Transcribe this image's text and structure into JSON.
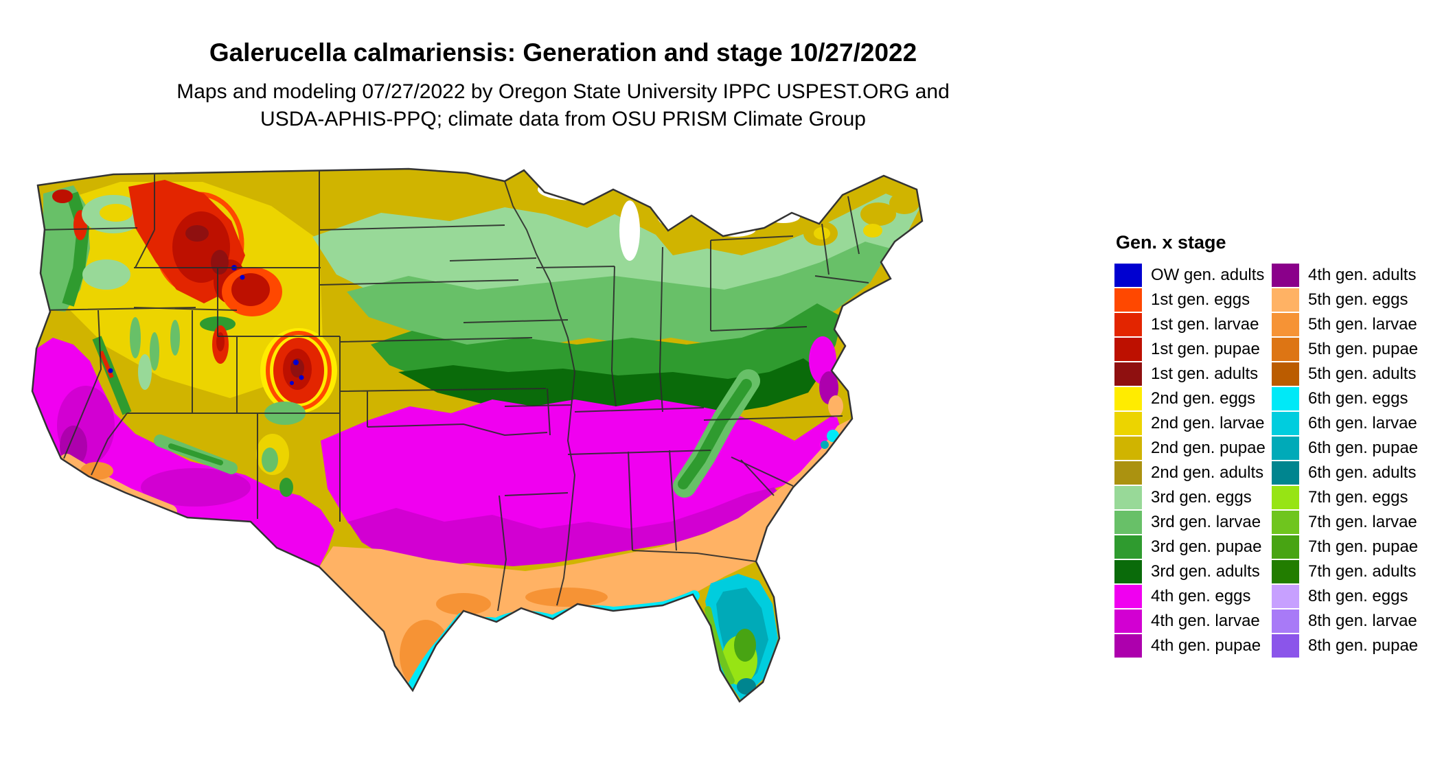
{
  "header": {
    "title": "Galerucella calmariensis: Generation and stage 10/27/2022",
    "subtitle_line1": "Maps and modeling 07/27/2022 by Oregon State University IPPC USPEST.ORG and",
    "subtitle_line2": "USDA-APHIS-PPQ; climate data from OSU PRISM Climate Group"
  },
  "legend": {
    "title": "Gen. x stage",
    "columns": [
      {
        "entries": [
          {
            "label": "OW gen. adults",
            "color": "#0000d0",
            "key": "ow_adults"
          },
          {
            "label": "1st gen. eggs",
            "color": "#ff4800",
            "key": "g1_eggs"
          },
          {
            "label": "1st gen. larvae",
            "color": "#e32500",
            "key": "g1_larvae"
          },
          {
            "label": "1st gen. pupae",
            "color": "#bd1000",
            "key": "g1_pupae"
          },
          {
            "label": "1st gen. adults",
            "color": "#8f1010",
            "key": "g1_adults"
          },
          {
            "label": "2nd gen. eggs",
            "color": "#ffec00",
            "key": "g2_eggs"
          },
          {
            "label": "2nd gen. larvae",
            "color": "#ecd400",
            "key": "g2_larvae"
          },
          {
            "label": "2nd gen. pupae",
            "color": "#d0b400",
            "key": "g2_pupae"
          },
          {
            "label": "2nd gen. adults",
            "color": "#ab9210",
            "key": "g2_adults"
          },
          {
            "label": "3rd gen. eggs",
            "color": "#98d998",
            "key": "g3_eggs"
          },
          {
            "label": "3rd gen. larvae",
            "color": "#68c068",
            "key": "g3_larvae"
          },
          {
            "label": "3rd gen. pupae",
            "color": "#2f9b2f",
            "key": "g3_pupae"
          },
          {
            "label": "3rd gen. adults",
            "color": "#0a6b0a",
            "key": "g3_adults"
          },
          {
            "label": "4th gen. eggs",
            "color": "#f000f0",
            "key": "g4_eggs"
          },
          {
            "label": "4th gen. larvae",
            "color": "#d200d2",
            "key": "g4_larvae"
          },
          {
            "label": "4th gen. pupae",
            "color": "#ad00ad",
            "key": "g4_pupae"
          }
        ]
      },
      {
        "entries": [
          {
            "label": "4th gen. adults",
            "color": "#8a008a",
            "key": "g4_adults"
          },
          {
            "label": "5th gen. eggs",
            "color": "#ffb264",
            "key": "g5_eggs"
          },
          {
            "label": "5th gen. larvae",
            "color": "#f69335",
            "key": "g5_larvae"
          },
          {
            "label": "5th gen. pupae",
            "color": "#dd7514",
            "key": "g5_pupae"
          },
          {
            "label": "5th gen. adults",
            "color": "#bb5c00",
            "key": "g5_adults"
          },
          {
            "label": "6th gen. eggs",
            "color": "#00e9f7",
            "key": "g6_eggs"
          },
          {
            "label": "6th gen. larvae",
            "color": "#00cdde",
            "key": "g6_larvae"
          },
          {
            "label": "6th gen. pupae",
            "color": "#00aab8",
            "key": "g6_pupae"
          },
          {
            "label": "6th gen. adults",
            "color": "#00858f",
            "key": "g6_adults"
          },
          {
            "label": "7th gen. eggs",
            "color": "#97e414",
            "key": "g7_eggs"
          },
          {
            "label": "7th gen. larvae",
            "color": "#6fc51e",
            "key": "g7_larvae"
          },
          {
            "label": "7th gen. pupae",
            "color": "#48a413",
            "key": "g7_pupae"
          },
          {
            "label": "7th gen. adults",
            "color": "#227d00",
            "key": "g7_adults"
          },
          {
            "label": "8th gen. eggs",
            "color": "#c7a0ff",
            "key": "g8_eggs"
          },
          {
            "label": "8th gen. larvae",
            "color": "#a87af7",
            "key": "g8_larvae"
          },
          {
            "label": "8th gen. pupae",
            "color": "#8b55ea",
            "key": "g8_pupae"
          }
        ]
      }
    ]
  },
  "map": {
    "description": "Contiguous United States raster map colored by Galerucella calmariensis generation and life stage",
    "colors": {
      "ow_adults": "#0000d0",
      "g1_eggs": "#ff4800",
      "g1_larvae": "#e32500",
      "g1_pupae": "#bd1000",
      "g1_adults": "#8f1010",
      "g2_eggs": "#ffec00",
      "g2_larvae": "#ecd400",
      "g2_pupae": "#d0b400",
      "g2_adults": "#ab9210",
      "g3_eggs": "#98d998",
      "g3_larvae": "#68c068",
      "g3_pupae": "#2f9b2f",
      "g3_adults": "#0a6b0a",
      "g4_eggs": "#f000f0",
      "g4_larvae": "#d200d2",
      "g4_pupae": "#ad00ad",
      "g4_adults": "#8a008a",
      "g5_eggs": "#ffb264",
      "g5_larvae": "#f69335",
      "g5_pupae": "#dd7514",
      "g5_adults": "#bb5c00",
      "g6_eggs": "#00e9f7",
      "g6_larvae": "#00cdde",
      "g6_pupae": "#00aab8",
      "g6_adults": "#00858f",
      "g7_eggs": "#97e414",
      "g7_larvae": "#6fc51e",
      "g7_pupae": "#48a413",
      "g7_adults": "#227d00",
      "g8_eggs": "#c7a0ff",
      "g8_larvae": "#a87af7",
      "g8_pupae": "#8b55ea",
      "state_border": "#2b2b2b",
      "outline": "#333333",
      "lakes": "#ffffff"
    }
  }
}
